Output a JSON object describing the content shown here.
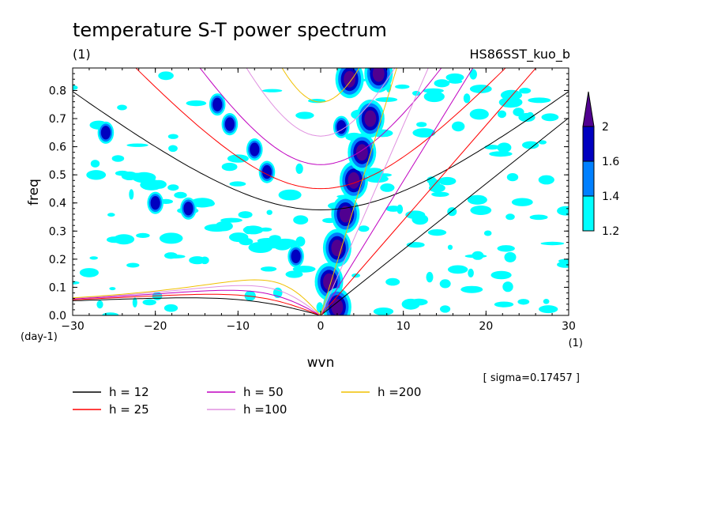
{
  "chart_data": {
    "type": "heatmap",
    "title": "temperature S-T power spectrum",
    "units_label": "(1)",
    "run_label": "HS86SST_kuo_b",
    "xlabel": "wvn",
    "ylabel": "freq",
    "x_unit": "(1)",
    "y_unit": "(day-1)",
    "xlim": [
      -30,
      30
    ],
    "ylim": [
      0,
      0.88
    ],
    "x_ticks": [
      -30,
      -20,
      -10,
      0,
      10,
      20,
      30
    ],
    "x_tick_labels": [
      "−30",
      "−20",
      "−10",
      "0",
      "10",
      "20",
      "30"
    ],
    "y_ticks": [
      0,
      0.1,
      0.2,
      0.3,
      0.4,
      0.5,
      0.6,
      0.7,
      0.8
    ],
    "y_tick_labels": [
      "0.0",
      "0.1",
      "0.2",
      "0.3",
      "0.4",
      "0.5",
      "0.6",
      "0.7",
      "0.8"
    ],
    "sigma_note": "[ sigma=0.17457 ]",
    "colorbar": {
      "levels": [
        1.2,
        1.4,
        1.6,
        2
      ],
      "labels": [
        "1.2",
        "1.4",
        "1.6",
        "2"
      ],
      "colors": [
        "#00ffff",
        "#0080ff",
        "#0000c0",
        "#500090"
      ]
    },
    "dispersion_curves": [
      {
        "name": "h = 12",
        "h": 12,
        "color": "#000000"
      },
      {
        "name": "h = 25",
        "h": 25,
        "color": "#ff0000"
      },
      {
        "name": "h = 50",
        "h": 50,
        "color": "#c000c0"
      },
      {
        "name": "h =100",
        "h": 100,
        "color": "#e090e0"
      },
      {
        "name": "h =200",
        "h": 200,
        "color": "#f0c000"
      }
    ],
    "significant_regions": [
      {
        "x": 3.5,
        "y": 0.84,
        "level": 2
      },
      {
        "x": 1.0,
        "y": 0.12,
        "level": 2
      },
      {
        "x": 2.0,
        "y": 0.03,
        "level": 2
      },
      {
        "x": 2.0,
        "y": 0.24,
        "level": 2
      },
      {
        "x": 3.0,
        "y": 0.36,
        "level": 2
      },
      {
        "x": 4.0,
        "y": 0.48,
        "level": 2
      },
      {
        "x": 5.0,
        "y": 0.58,
        "level": 2
      },
      {
        "x": 6.0,
        "y": 0.7,
        "level": 2
      },
      {
        "x": 7.0,
        "y": 0.86,
        "level": 2
      },
      {
        "x": -3.0,
        "y": 0.21,
        "level": 1.6
      },
      {
        "x": -6.5,
        "y": 0.51,
        "level": 1.6
      },
      {
        "x": -8.0,
        "y": 0.59,
        "level": 1.6
      },
      {
        "x": -11.0,
        "y": 0.68,
        "level": 1.6
      },
      {
        "x": -12.5,
        "y": 0.75,
        "level": 1.6
      },
      {
        "x": -16.0,
        "y": 0.38,
        "level": 1.6
      },
      {
        "x": -20.0,
        "y": 0.4,
        "level": 1.6
      },
      {
        "x": -26.0,
        "y": 0.65,
        "level": 1.6
      },
      {
        "x": 2.5,
        "y": 0.67,
        "level": 1.6
      }
    ]
  }
}
